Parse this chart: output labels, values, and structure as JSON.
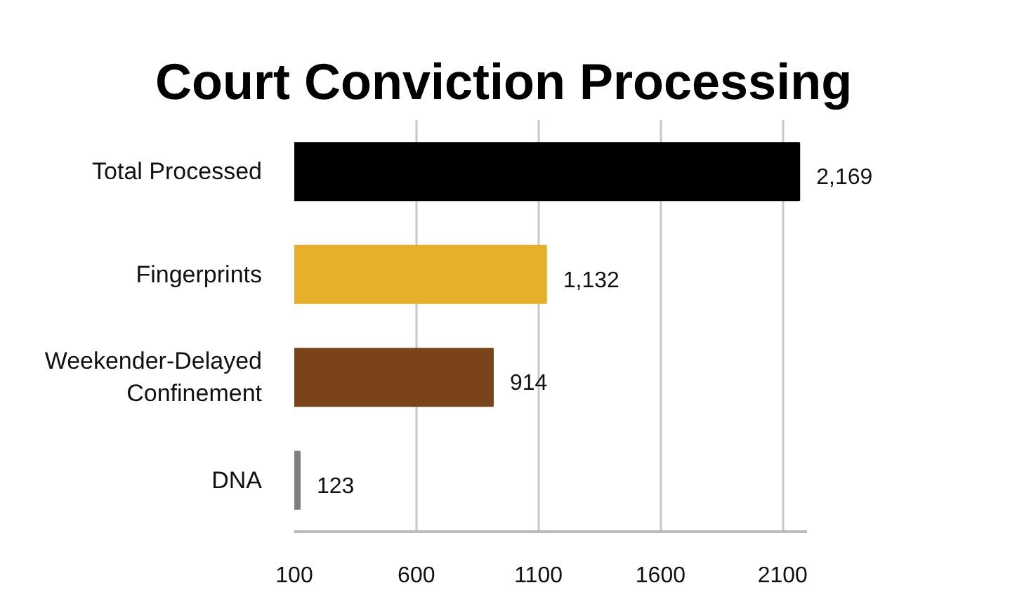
{
  "chart_data": {
    "type": "bar",
    "orientation": "horizontal",
    "title": "Court Conviction Processing",
    "categories": [
      "Total Processed",
      "Fingerprints",
      "Weekender-Delayed Confinement",
      "DNA"
    ],
    "values": [
      2169,
      1132,
      914,
      123
    ],
    "colors": [
      "#000000",
      "#e8b02a",
      "#7a4319",
      "#7f7f7f"
    ],
    "value_labels": [
      "2,169",
      "1,132",
      "914",
      "123"
    ],
    "xlim": [
      100,
      2200
    ],
    "xticks": [
      100,
      600,
      1100,
      1600,
      2100
    ],
    "grid": "x"
  }
}
